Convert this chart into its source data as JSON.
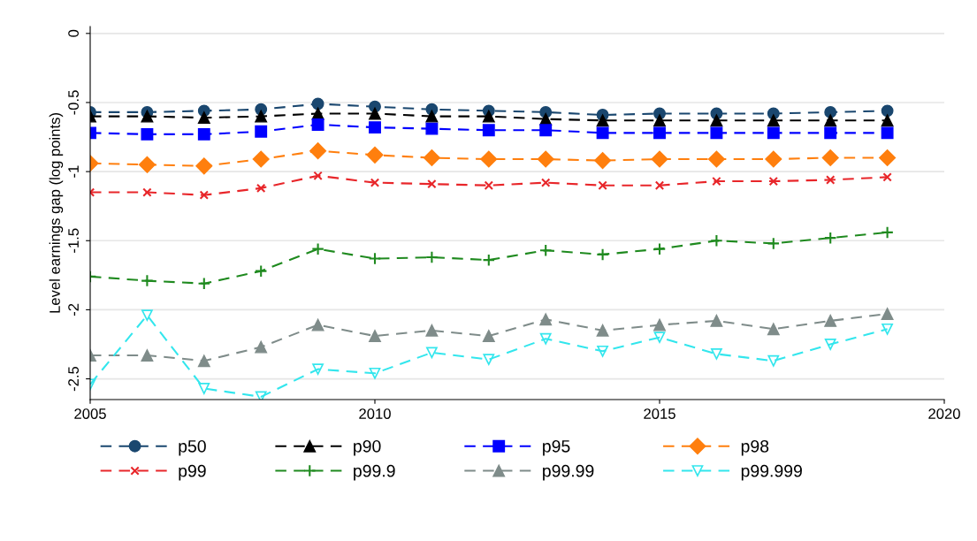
{
  "chart_data": {
    "type": "line",
    "ylabel": "Level earnings gap (log points)",
    "x": [
      2005,
      2006,
      2007,
      2008,
      2009,
      2010,
      2011,
      2012,
      2013,
      2014,
      2015,
      2016,
      2017,
      2018,
      2019
    ],
    "xlim": [
      2005,
      2020
    ],
    "xticks": [
      2005,
      2010,
      2015,
      2020
    ],
    "ylim": [
      -2.65,
      0.05
    ],
    "yticks": [
      0,
      -0.5,
      -1,
      -1.5,
      -2,
      -2.5
    ],
    "grid": "y",
    "legend": "bottom",
    "line_style": "dashed",
    "series": [
      {
        "name": "p50",
        "color": "#1a476f",
        "marker": "circle",
        "values": [
          -0.57,
          -0.57,
          -0.56,
          -0.55,
          -0.51,
          -0.53,
          -0.55,
          -0.56,
          -0.57,
          -0.59,
          -0.58,
          -0.58,
          -0.58,
          -0.57,
          -0.56
        ]
      },
      {
        "name": "p90",
        "color": "#000000",
        "marker": "triangle",
        "values": [
          -0.6,
          -0.6,
          -0.61,
          -0.6,
          -0.58,
          -0.58,
          -0.6,
          -0.6,
          -0.62,
          -0.63,
          -0.63,
          -0.63,
          -0.63,
          -0.63,
          -0.63
        ]
      },
      {
        "name": "p95",
        "color": "#0000ff",
        "marker": "square",
        "values": [
          -0.72,
          -0.73,
          -0.73,
          -0.71,
          -0.66,
          -0.68,
          -0.69,
          -0.7,
          -0.7,
          -0.72,
          -0.72,
          -0.72,
          -0.72,
          -0.72,
          -0.72
        ]
      },
      {
        "name": "p98",
        "color": "#ff7f0e",
        "marker": "diamond",
        "values": [
          -0.94,
          -0.95,
          -0.96,
          -0.91,
          -0.85,
          -0.88,
          -0.9,
          -0.91,
          -0.91,
          -0.92,
          -0.91,
          -0.91,
          -0.91,
          -0.9,
          -0.9
        ]
      },
      {
        "name": "p99",
        "color": "#e8262a",
        "marker": "cross",
        "values": [
          -1.15,
          -1.15,
          -1.17,
          -1.12,
          -1.03,
          -1.08,
          -1.09,
          -1.1,
          -1.08,
          -1.1,
          -1.1,
          -1.07,
          -1.07,
          -1.06,
          -1.04
        ]
      },
      {
        "name": "p99.9",
        "color": "#1f8a1f",
        "marker": "plus",
        "values": [
          -1.76,
          -1.79,
          -1.81,
          -1.72,
          -1.56,
          -1.63,
          -1.62,
          -1.64,
          -1.57,
          -1.6,
          -1.56,
          -1.5,
          -1.52,
          -1.48,
          -1.44
        ]
      },
      {
        "name": "p99.99",
        "color": "#7f8c8a",
        "marker": "triangle",
        "values": [
          -2.33,
          -2.33,
          -2.37,
          -2.27,
          -2.11,
          -2.19,
          -2.15,
          -2.19,
          -2.07,
          -2.15,
          -2.11,
          -2.08,
          -2.14,
          -2.08,
          -2.03
        ]
      },
      {
        "name": "p99.999",
        "color": "#33e6ed",
        "marker": "triangle_down_open",
        "values": [
          -2.54,
          -2.04,
          -2.57,
          -2.63,
          -2.43,
          -2.46,
          -2.31,
          -2.36,
          -2.21,
          -2.3,
          -2.2,
          -2.32,
          -2.37,
          -2.25,
          -2.14
        ]
      }
    ]
  }
}
